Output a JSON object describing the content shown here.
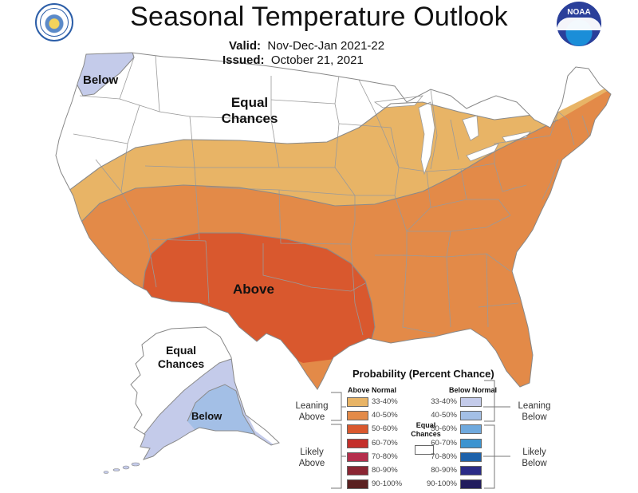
{
  "header": {
    "title": "Seasonal Temperature Outlook",
    "valid_label": "Valid:",
    "valid_value": "Nov-Dec-Jan 2021-22",
    "issued_label": "Issued:",
    "issued_value": "October 21, 2021"
  },
  "logos": {
    "left": "department-of-commerce-seal",
    "right": "noaa-logo",
    "noaa_text": "NOAA"
  },
  "map_labels": {
    "below_nw": "Below",
    "equal_chances_top": "Equal",
    "equal_chances_bottom": "Chances",
    "above": "Above",
    "alaska_equal_top": "Equal",
    "alaska_equal_bottom": "Chances",
    "alaska_below": "Below"
  },
  "legend": {
    "title": "Probability (Percent Chance)",
    "above_header": "Above Normal",
    "below_header": "Below Normal",
    "leaning_above": [
      "Leaning",
      "Above"
    ],
    "likely_above": [
      "Likely",
      "Above"
    ],
    "leaning_below": [
      "Leaning",
      "Below"
    ],
    "likely_below": [
      "Likely",
      "Below"
    ],
    "equal_chances": [
      "Equal",
      "Chances"
    ],
    "above_bins": [
      {
        "range": "33-40%",
        "color": "#e8b466"
      },
      {
        "range": "40-50%",
        "color": "#e38a48"
      },
      {
        "range": "50-60%",
        "color": "#d9582e"
      },
      {
        "range": "60-70%",
        "color": "#c42f2a"
      },
      {
        "range": "70-80%",
        "color": "#b52e4c"
      },
      {
        "range": "80-90%",
        "color": "#8a2532"
      },
      {
        "range": "90-100%",
        "color": "#5a2020"
      }
    ],
    "below_bins": [
      {
        "range": "33-40%",
        "color": "#c4cbea"
      },
      {
        "range": "40-50%",
        "color": "#a3bfe6"
      },
      {
        "range": "50-60%",
        "color": "#6fa9dd"
      },
      {
        "range": "60-70%",
        "color": "#3c94d0"
      },
      {
        "range": "70-80%",
        "color": "#1e62aa"
      },
      {
        "range": "80-90%",
        "color": "#2a2b86"
      },
      {
        "range": "90-100%",
        "color": "#221d5e"
      }
    ]
  }
}
